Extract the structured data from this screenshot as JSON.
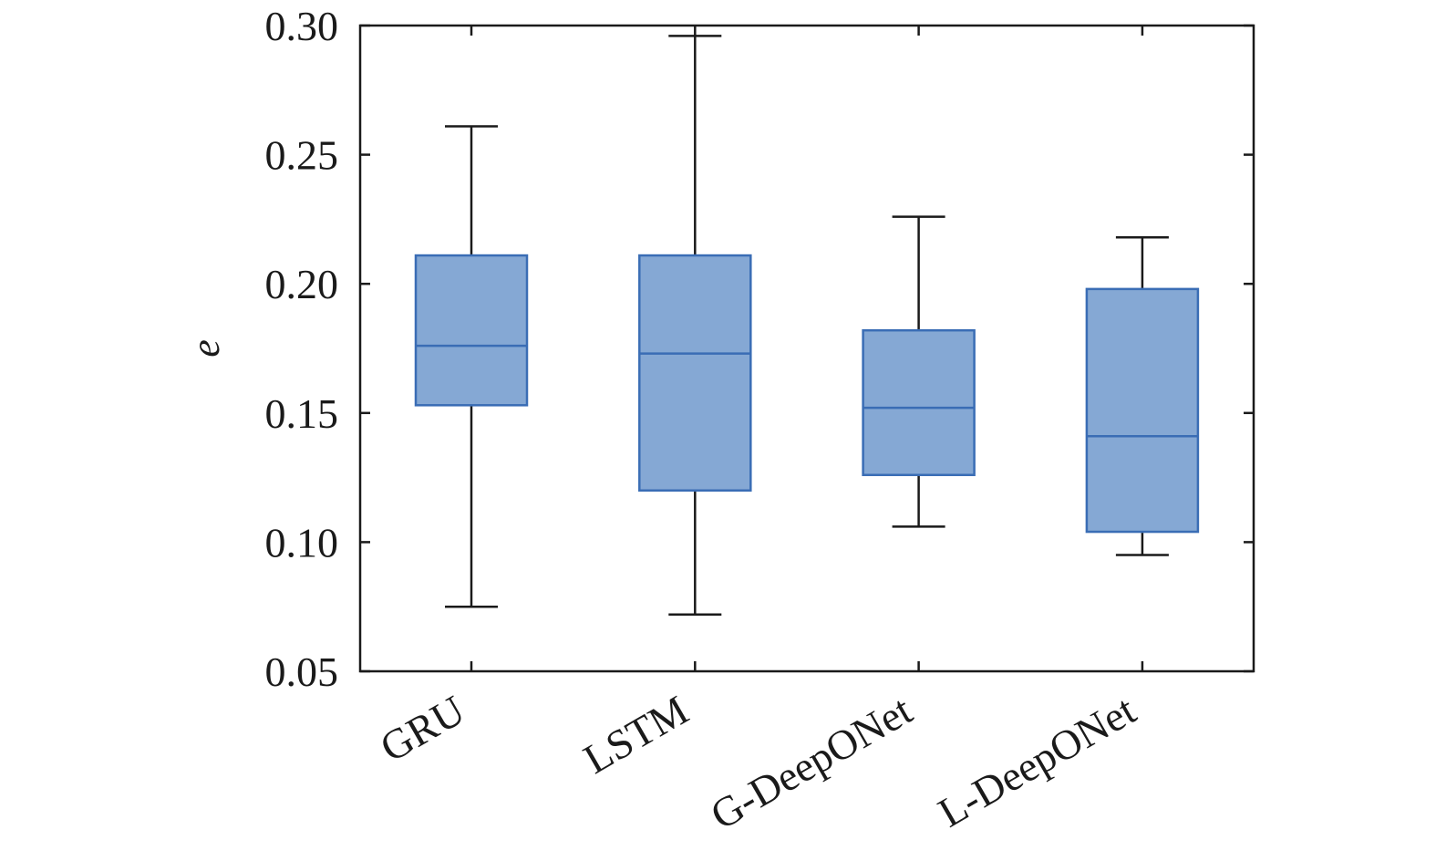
{
  "chart_data": {
    "type": "box",
    "title": "",
    "xlabel": "",
    "ylabel": "e",
    "ylim": [
      0.05,
      0.3
    ],
    "yticks": [
      "0.05",
      "0.10",
      "0.15",
      "0.20",
      "0.25",
      "0.30"
    ],
    "grid": false,
    "categories": [
      "GRU",
      "LSTM",
      "G-DeepONet",
      "L-DeepONet"
    ],
    "boxes": [
      {
        "name": "GRU",
        "whisker_low": 0.075,
        "q1": 0.153,
        "median": 0.176,
        "q3": 0.211,
        "whisker_high": 0.261
      },
      {
        "name": "LSTM",
        "whisker_low": 0.072,
        "q1": 0.12,
        "median": 0.173,
        "q3": 0.211,
        "whisker_high": 0.296
      },
      {
        "name": "G-DeepONet",
        "whisker_low": 0.106,
        "q1": 0.126,
        "median": 0.152,
        "q3": 0.182,
        "whisker_high": 0.226
      },
      {
        "name": "L-DeepONet",
        "whisker_low": 0.095,
        "q1": 0.104,
        "median": 0.141,
        "q3": 0.198,
        "whisker_high": 0.218
      }
    ],
    "colors": {
      "box_fill": "#85a8d4",
      "box_edge": "#3a6db5",
      "whisker": "#1a1a1a",
      "axis": "#1a1a1a"
    }
  }
}
